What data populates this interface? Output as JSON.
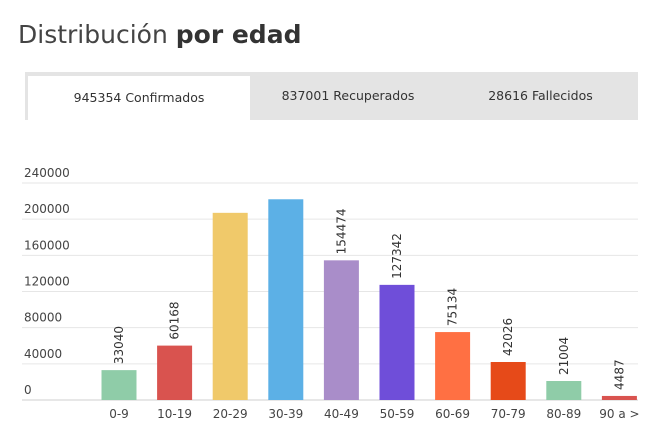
{
  "header": {
    "title_part1": "Distribución ",
    "title_part2": "por edad"
  },
  "tabs": [
    {
      "label": "945354 Confirmados",
      "active": true
    },
    {
      "label": "837001 Recuperados",
      "active": false
    },
    {
      "label": "28616 Fallecidos",
      "active": false
    }
  ],
  "chart_data": {
    "type": "bar",
    "title": "",
    "xlabel": "",
    "ylabel": "",
    "ylim": [
      0,
      240000
    ],
    "yticks": [
      "0",
      "40000",
      "80000",
      "120000",
      "160000",
      "200000",
      "240000"
    ],
    "grid": true,
    "categories": [
      "0-9",
      "10-19",
      "20-29",
      "30-39",
      "40-49",
      "50-59",
      "60-69",
      "70-79",
      "80-89",
      "90 a >"
    ],
    "values": [
      33040,
      60168,
      207000,
      222000,
      154474,
      127342,
      75134,
      42026,
      21004,
      4487
    ],
    "labels": [
      "33040",
      "60168",
      "",
      "",
      "154474",
      "127342",
      "75134",
      "42026",
      "21004",
      "4487"
    ],
    "colors": [
      "#8fcca8",
      "#d9534f",
      "#f0c96a",
      "#5cb0e6",
      "#a98dc9",
      "#6f4ed9",
      "#ff7043",
      "#e64a19",
      "#8fcca8",
      "#d9534f"
    ]
  }
}
